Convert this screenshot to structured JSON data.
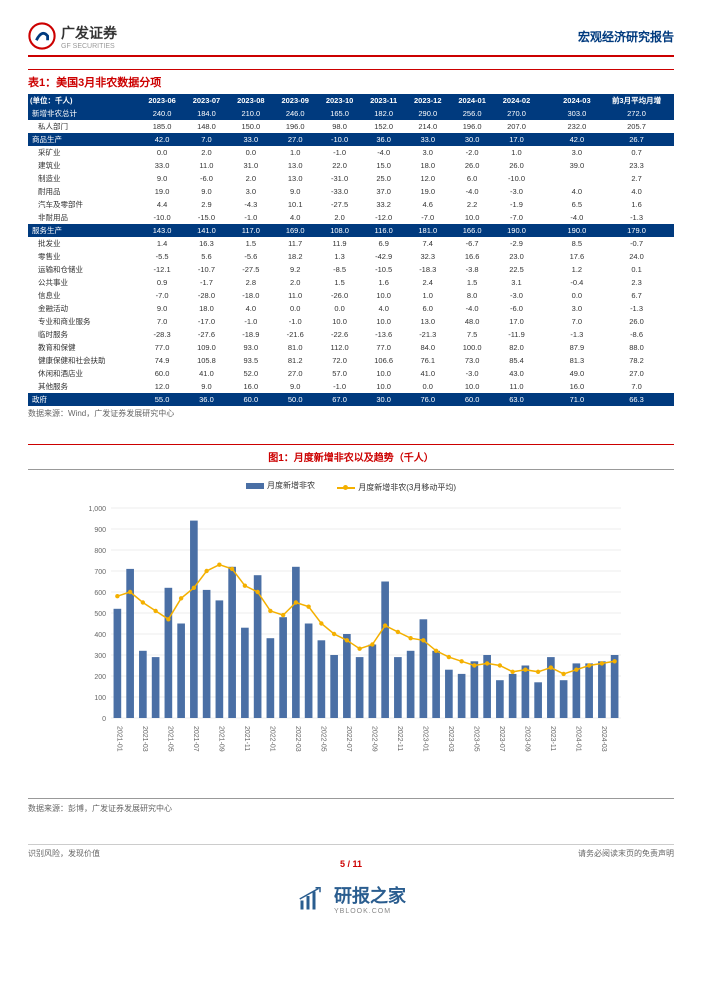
{
  "header": {
    "brand": "广发证券",
    "brand_en": "GF SECURITIES",
    "report_type": "宏观经济研究报告"
  },
  "table": {
    "title": "表1：美国3月非农数据分项",
    "unit": "(单位：千人)",
    "source": "数据来源：Wind，广发证券发展研究中心",
    "columns": [
      "2023-06",
      "2023-07",
      "2023-08",
      "2023-09",
      "2023-10",
      "2023-11",
      "2023-12",
      "2024-01",
      "2024-02",
      "2024-03",
      "前3月平均月增"
    ],
    "rows": [
      {
        "dark": true,
        "cells": [
          "新增非农总计",
          "240.0",
          "184.0",
          "210.0",
          "246.0",
          "165.0",
          "182.0",
          "290.0",
          "256.0",
          "270.0",
          "",
          "303.0",
          "272.0"
        ]
      },
      {
        "cells": [
          "私人部门",
          "185.0",
          "148.0",
          "150.0",
          "196.0",
          "98.0",
          "152.0",
          "214.0",
          "196.0",
          "207.0",
          "",
          "232.0",
          "205.7"
        ]
      },
      {
        "dark": true,
        "cells": [
          "商品生产",
          "42.0",
          "7.0",
          "33.0",
          "27.0",
          "-10.0",
          "36.0",
          "33.0",
          "30.0",
          "17.0",
          "",
          "42.0",
          "26.7"
        ]
      },
      {
        "cells": [
          "采矿业",
          "0.0",
          "2.0",
          "0.0",
          "1.0",
          "-1.0",
          "-4.0",
          "3.0",
          "-2.0",
          "1.0",
          "",
          "3.0",
          "0.7"
        ]
      },
      {
        "cells": [
          "建筑业",
          "33.0",
          "11.0",
          "31.0",
          "13.0",
          "22.0",
          "15.0",
          "18.0",
          "26.0",
          "26.0",
          "",
          "39.0",
          "23.3"
        ]
      },
      {
        "cells": [
          "制造业",
          "9.0",
          "-6.0",
          "2.0",
          "13.0",
          "-31.0",
          "25.0",
          "12.0",
          "6.0",
          "-10.0",
          "",
          "",
          "2.7"
        ]
      },
      {
        "cells": [
          "耐用品",
          "19.0",
          "9.0",
          "3.0",
          "9.0",
          "-33.0",
          "37.0",
          "19.0",
          "-4.0",
          "-3.0",
          "",
          "4.0",
          "4.0"
        ]
      },
      {
        "cells": [
          "汽车及零部件",
          "4.4",
          "2.9",
          "-4.3",
          "10.1",
          "-27.5",
          "33.2",
          "4.6",
          "2.2",
          "-1.9",
          "",
          "6.5",
          "1.6"
        ]
      },
      {
        "cells": [
          "非耐用品",
          "-10.0",
          "-15.0",
          "-1.0",
          "4.0",
          "2.0",
          "-12.0",
          "-7.0",
          "10.0",
          "-7.0",
          "",
          "-4.0",
          "-1.3"
        ]
      },
      {
        "dark": true,
        "cells": [
          "服务生产",
          "143.0",
          "141.0",
          "117.0",
          "169.0",
          "108.0",
          "116.0",
          "181.0",
          "166.0",
          "190.0",
          "",
          "190.0",
          "179.0"
        ]
      },
      {
        "cells": [
          "批发业",
          "1.4",
          "16.3",
          "1.5",
          "11.7",
          "11.9",
          "6.9",
          "7.4",
          "-6.7",
          "-2.9",
          "",
          "8.5",
          "-0.7"
        ]
      },
      {
        "cells": [
          "零售业",
          "-5.5",
          "5.6",
          "-5.6",
          "18.2",
          "1.3",
          "-42.9",
          "32.3",
          "16.6",
          "23.0",
          "",
          "17.6",
          "24.0"
        ]
      },
      {
        "cells": [
          "运输和仓储业",
          "-12.1",
          "-10.7",
          "-27.5",
          "9.2",
          "-8.5",
          "-10.5",
          "-18.3",
          "-3.8",
          "22.5",
          "",
          "1.2",
          "0.1"
        ]
      },
      {
        "cells": [
          "公共事业",
          "0.9",
          "-1.7",
          "2.8",
          "2.0",
          "1.5",
          "1.6",
          "2.4",
          "1.5",
          "3.1",
          "",
          "-0.4",
          "2.3"
        ]
      },
      {
        "cells": [
          "信息业",
          "-7.0",
          "-28.0",
          "-18.0",
          "11.0",
          "-26.0",
          "10.0",
          "1.0",
          "8.0",
          "-3.0",
          "",
          "0.0",
          "6.7"
        ]
      },
      {
        "cells": [
          "金融活动",
          "9.0",
          "18.0",
          "4.0",
          "0.0",
          "0.0",
          "4.0",
          "6.0",
          "-4.0",
          "-6.0",
          "",
          "3.0",
          "-1.3"
        ]
      },
      {
        "cells": [
          "专业和商业服务",
          "7.0",
          "-17.0",
          "-1.0",
          "-1.0",
          "10.0",
          "10.0",
          "13.0",
          "48.0",
          "17.0",
          "",
          "7.0",
          "26.0"
        ]
      },
      {
        "cells": [
          "临时服务",
          "-28.3",
          "-27.6",
          "-18.9",
          "-21.6",
          "-22.6",
          "-13.6",
          "-21.3",
          "7.5",
          "-11.9",
          "",
          "-1.3",
          "-8.6"
        ]
      },
      {
        "cells": [
          "教育和保健",
          "77.0",
          "109.0",
          "93.0",
          "81.0",
          "112.0",
          "77.0",
          "84.0",
          "100.0",
          "82.0",
          "",
          "87.9",
          "88.0"
        ]
      },
      {
        "cells": [
          "健康保健和社会扶助",
          "74.9",
          "105.8",
          "93.5",
          "81.2",
          "72.0",
          "106.6",
          "76.1",
          "73.0",
          "85.4",
          "",
          "81.3",
          "78.2"
        ]
      },
      {
        "cells": [
          "休闲和酒店业",
          "60.0",
          "41.0",
          "52.0",
          "27.0",
          "57.0",
          "10.0",
          "41.0",
          "-3.0",
          "43.0",
          "",
          "49.0",
          "27.0"
        ]
      },
      {
        "cells": [
          "其他服务",
          "12.0",
          "9.0",
          "16.0",
          "9.0",
          "-1.0",
          "10.0",
          "0.0",
          "10.0",
          "11.0",
          "",
          "16.0",
          "7.0"
        ]
      },
      {
        "dark": true,
        "cells": [
          "政府",
          "55.0",
          "36.0",
          "60.0",
          "50.0",
          "67.0",
          "30.0",
          "76.0",
          "60.0",
          "63.0",
          "",
          "71.0",
          "66.3"
        ]
      }
    ]
  },
  "chart": {
    "title": "图1：月度新增非农以及趋势（千人）",
    "source": "数据来源：彭博，广发证券发展研究中心",
    "legend": [
      "月度新增非农",
      "月度新增非农(3月移动平均)"
    ],
    "x_labels": [
      "2021-01",
      "2021-03",
      "2021-05",
      "2021-07",
      "2021-09",
      "2021-11",
      "2022-01",
      "2022-03",
      "2022-05",
      "2022-07",
      "2022-09",
      "2022-11",
      "2023-01",
      "2023-03",
      "2023-05",
      "2023-07",
      "2023-09",
      "2023-11",
      "2024-01",
      "2024-03"
    ],
    "ylim": [
      0,
      1000
    ],
    "ytick": 100,
    "bar_color": "#4a6fa5",
    "line_color": "#f4b000",
    "grid_color": "#d9d9d9",
    "bars": [
      520,
      710,
      320,
      290,
      620,
      450,
      940,
      610,
      560,
      720,
      430,
      680,
      380,
      480,
      720,
      450,
      370,
      300,
      400,
      290,
      350,
      650,
      290,
      320,
      470,
      320,
      230,
      210,
      270,
      300,
      180,
      210,
      250,
      170,
      290,
      180,
      260,
      260,
      270,
      300
    ],
    "line": [
      580,
      600,
      550,
      510,
      470,
      570,
      620,
      700,
      730,
      710,
      630,
      600,
      510,
      490,
      550,
      530,
      450,
      400,
      370,
      330,
      350,
      440,
      410,
      380,
      370,
      320,
      290,
      270,
      250,
      260,
      250,
      220,
      230,
      220,
      240,
      210,
      230,
      250,
      260,
      270
    ]
  },
  "footer": {
    "left": "识别风险，发现价值",
    "right": "请务必阅读末页的免责声明",
    "page_current": "5",
    "page_total": "11"
  },
  "watermark": {
    "name": "研报之家",
    "url": "YBLOOK.COM"
  }
}
